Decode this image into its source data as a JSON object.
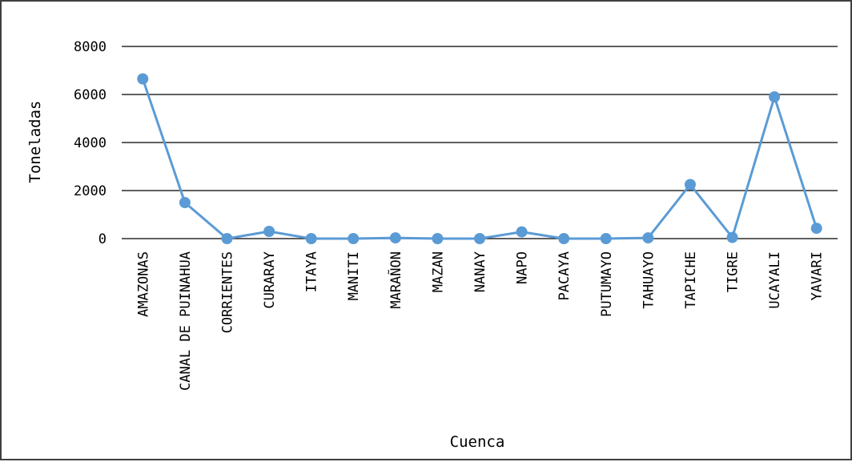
{
  "chart_data": {
    "type": "line",
    "title": "",
    "xlabel": "Cuenca",
    "ylabel": "Toneladas",
    "ylim": [
      0,
      8000
    ],
    "yticks": [
      0,
      2000,
      4000,
      6000,
      8000
    ],
    "grid": "horizontal",
    "legend": "none",
    "categories": [
      "AMAZONAS",
      "CANAL DE PUINAHUA",
      "CORRIENTES",
      "CURARAY",
      "ITAYA",
      "MANITI",
      "MARAÑON",
      "MAZAN",
      "NANAY",
      "NAPO",
      "PACAYA",
      "PUTUMAYO",
      "TAHUAYO",
      "TAPICHE",
      "TIGRE",
      "UCAYALI",
      "YAVARI"
    ],
    "series": [
      {
        "values": [
          6650,
          1500,
          0,
          300,
          0,
          0,
          30,
          0,
          0,
          280,
          0,
          0,
          30,
          2250,
          50,
          5900,
          430
        ],
        "color": "#5b9bd5"
      }
    ]
  }
}
